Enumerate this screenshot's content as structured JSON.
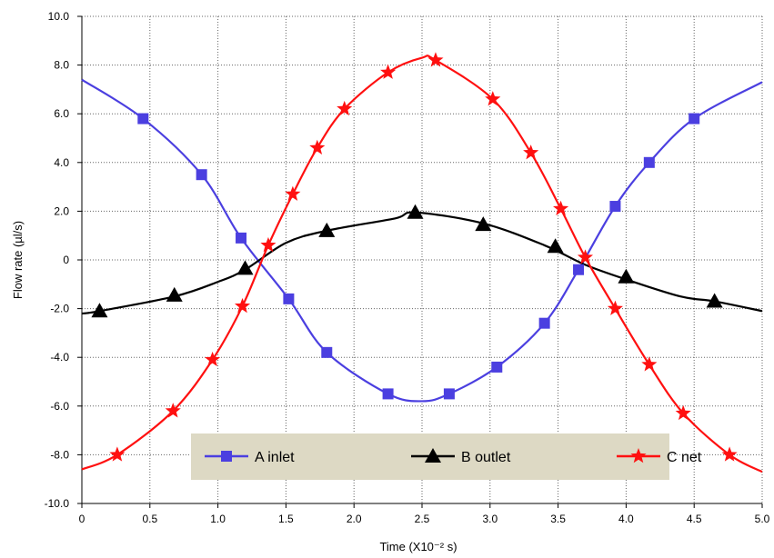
{
  "chart_data": {
    "type": "line",
    "xlabel": "Time (X10⁻² s)",
    "ylabel": "Flow rate (µl/s)",
    "xlim": [
      0,
      5
    ],
    "ylim": [
      -10,
      10
    ],
    "x_ticks": [
      "0",
      "0.5",
      "1.0",
      "1.5",
      "2.0",
      "2.5",
      "3.0",
      "3.5",
      "4.0",
      "4.5",
      "5.0"
    ],
    "y_ticks": [
      "10.0",
      "8.0",
      "6.0",
      "4.0",
      "2.0",
      "0",
      "-2.0",
      "-4.0",
      "-6.0",
      "-8.0",
      "-10.0"
    ],
    "grid": true,
    "legend_position": "bottom-center",
    "series": [
      {
        "name": "A inlet",
        "color": "#4b3fe0",
        "marker": "square",
        "x": [
          0,
          0.45,
          0.88,
          1.17,
          1.52,
          1.8,
          2.25,
          2.5,
          2.7,
          3.05,
          3.4,
          3.65,
          3.92,
          4.17,
          4.5,
          5.0
        ],
        "y": [
          7.4,
          5.8,
          3.5,
          0.9,
          -1.6,
          -3.8,
          -5.5,
          -5.8,
          -5.5,
          -4.4,
          -2.6,
          -0.4,
          2.2,
          4.0,
          5.8,
          7.3
        ],
        "markers_x": [
          0.45,
          0.88,
          1.17,
          1.52,
          1.8,
          2.25,
          2.7,
          3.05,
          3.4,
          3.65,
          3.92,
          4.17,
          4.5
        ],
        "markers_y": [
          5.8,
          3.5,
          0.9,
          -1.6,
          -3.8,
          -5.5,
          -5.5,
          -4.4,
          -2.6,
          -0.4,
          2.2,
          4.0,
          5.8
        ]
      },
      {
        "name": "B outlet",
        "color": "#000000",
        "marker": "triangle",
        "x": [
          0,
          0.13,
          0.68,
          1.0,
          1.2,
          1.5,
          1.8,
          2.3,
          2.45,
          2.95,
          3.4,
          3.7,
          4.0,
          4.4,
          4.65,
          5.0
        ],
        "y": [
          -2.2,
          -2.1,
          -1.5,
          -0.9,
          -0.4,
          0.7,
          1.2,
          1.7,
          1.95,
          1.5,
          0.6,
          -0.2,
          -0.8,
          -1.5,
          -1.7,
          -2.1
        ],
        "markers_x": [
          0.13,
          0.68,
          1.2,
          1.8,
          2.45,
          2.95,
          3.48,
          4.0,
          4.65
        ],
        "markers_y": [
          -2.1,
          -1.45,
          -0.35,
          1.2,
          1.95,
          1.45,
          0.55,
          -0.7,
          -1.7
        ]
      },
      {
        "name": "C net",
        "color": "#ff1010",
        "marker": "star",
        "x": [
          0,
          0.26,
          0.67,
          0.96,
          1.18,
          1.37,
          1.55,
          1.73,
          1.93,
          2.25,
          2.5,
          2.6,
          3.02,
          3.3,
          3.52,
          3.7,
          3.92,
          4.17,
          4.42,
          4.76,
          5.0
        ],
        "y": [
          -8.6,
          -8.0,
          -6.2,
          -4.1,
          -1.9,
          0.6,
          2.7,
          4.6,
          6.2,
          7.7,
          8.3,
          8.2,
          6.6,
          4.4,
          2.1,
          0.1,
          -2.0,
          -4.3,
          -6.3,
          -8.0,
          -8.7
        ],
        "markers_x": [
          0.26,
          0.67,
          0.96,
          1.18,
          1.37,
          1.55,
          1.73,
          1.93,
          2.25,
          2.6,
          3.02,
          3.3,
          3.52,
          3.7,
          3.92,
          4.17,
          4.42,
          4.76
        ],
        "markers_y": [
          -8.0,
          -6.2,
          -4.1,
          -1.9,
          0.6,
          2.7,
          4.6,
          6.2,
          7.7,
          8.2,
          6.6,
          4.4,
          2.1,
          0.1,
          -2.0,
          -4.3,
          -6.3,
          -8.0
        ]
      }
    ]
  }
}
